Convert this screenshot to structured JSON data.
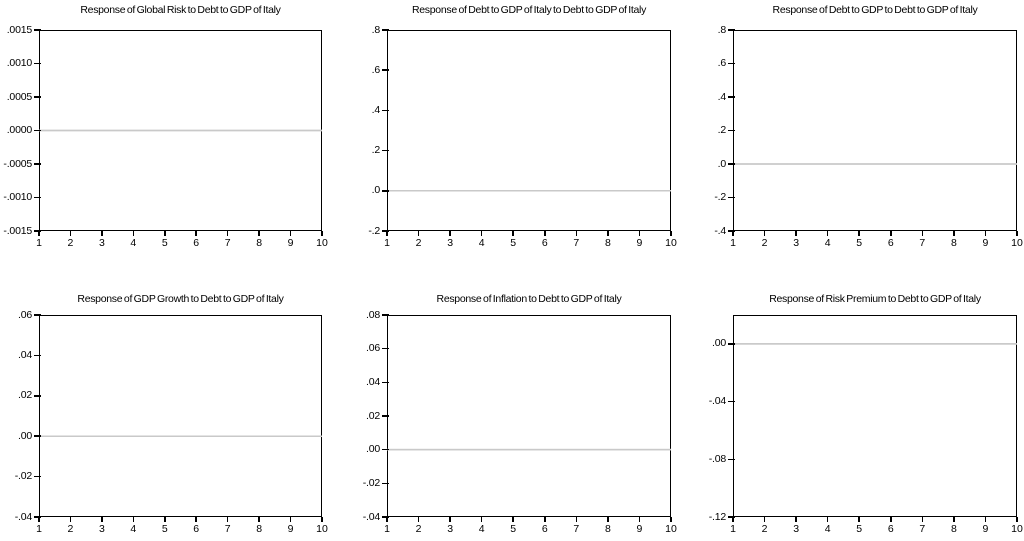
{
  "figure": {
    "background": "#ffffff"
  },
  "colors": {
    "axis": "#000000",
    "text": "#000000",
    "zero_line": "#c9c9c9",
    "response_line": "#c9c9c9"
  },
  "chart_data": [
    {
      "type": "line",
      "title": "Response of Global Risk to Debt to GDP of Italy",
      "x": [
        1,
        2,
        3,
        4,
        5,
        6,
        7,
        8,
        9,
        10
      ],
      "values": [
        0,
        0,
        0,
        0,
        0,
        0,
        0,
        0,
        0,
        0
      ],
      "xlim": [
        1,
        10
      ],
      "ylim": [
        -0.0015,
        0.0015
      ],
      "ytick_labels": [
        ".0015",
        ".0010",
        ".0005",
        ".0000",
        "-.0005",
        "-.0010",
        "-.0015"
      ],
      "ytick_values": [
        0.0015,
        0.001,
        0.0005,
        0,
        -0.0005,
        -0.001,
        -0.0015
      ],
      "xtick_labels": [
        "1",
        "2",
        "3",
        "4",
        "5",
        "6",
        "7",
        "8",
        "9",
        "10"
      ],
      "grid": false,
      "zero_line": true
    },
    {
      "type": "line",
      "title": "Response of Debt to GDP of Italy to Debt to GDP of Italy",
      "x": [
        1,
        2,
        3,
        4,
        5,
        6,
        7,
        8,
        9,
        10
      ],
      "values": [
        0,
        0,
        0,
        0,
        0,
        0,
        0,
        0,
        0,
        0
      ],
      "xlim": [
        1,
        10
      ],
      "ylim": [
        -0.2,
        0.8
      ],
      "ytick_labels": [
        ".8",
        ".6",
        ".4",
        ".2",
        ".0",
        "-.2"
      ],
      "ytick_values": [
        0.8,
        0.6,
        0.4,
        0.2,
        0,
        -0.2
      ],
      "xtick_labels": [
        "1",
        "2",
        "3",
        "4",
        "5",
        "6",
        "7",
        "8",
        "9",
        "10"
      ],
      "grid": false,
      "zero_line": true
    },
    {
      "type": "line",
      "title": "Response of Debt to GDP to Debt to GDP of Italy",
      "x": [
        1,
        2,
        3,
        4,
        5,
        6,
        7,
        8,
        9,
        10
      ],
      "values": [
        0,
        0,
        0,
        0,
        0,
        0,
        0,
        0,
        0,
        0
      ],
      "xlim": [
        1,
        10
      ],
      "ylim": [
        -0.4,
        0.8
      ],
      "ytick_labels": [
        ".8",
        ".6",
        ".4",
        ".2",
        ".0",
        "-.2",
        "-.4"
      ],
      "ytick_values": [
        0.8,
        0.6,
        0.4,
        0.2,
        0,
        -0.2,
        -0.4
      ],
      "xtick_labels": [
        "1",
        "2",
        "3",
        "4",
        "5",
        "6",
        "7",
        "8",
        "9",
        "10"
      ],
      "grid": false,
      "zero_line": true
    },
    {
      "type": "line",
      "title": "Response of GDP Growth to Debt to GDP of Italy",
      "x": [
        1,
        2,
        3,
        4,
        5,
        6,
        7,
        8,
        9,
        10
      ],
      "values": [
        0,
        0,
        0,
        0,
        0,
        0,
        0,
        0,
        0,
        0
      ],
      "xlim": [
        1,
        10
      ],
      "ylim": [
        -0.04,
        0.06
      ],
      "ytick_labels": [
        ".06",
        ".04",
        ".02",
        ".00",
        "-.02",
        "-.04"
      ],
      "ytick_values": [
        0.06,
        0.04,
        0.02,
        0,
        -0.02,
        -0.04
      ],
      "xtick_labels": [
        "1",
        "2",
        "3",
        "4",
        "5",
        "6",
        "7",
        "8",
        "9",
        "10"
      ],
      "grid": false,
      "zero_line": true
    },
    {
      "type": "line",
      "title": "Response of Inflation to Debt to GDP of Italy",
      "x": [
        1,
        2,
        3,
        4,
        5,
        6,
        7,
        8,
        9,
        10
      ],
      "values": [
        0,
        0,
        0,
        0,
        0,
        0,
        0,
        0,
        0,
        0
      ],
      "xlim": [
        1,
        10
      ],
      "ylim": [
        -0.04,
        0.08
      ],
      "ytick_labels": [
        ".08",
        ".06",
        ".04",
        ".02",
        ".00",
        "-.02",
        "-.04"
      ],
      "ytick_values": [
        0.08,
        0.06,
        0.04,
        0.02,
        0,
        -0.02,
        -0.04
      ],
      "xtick_labels": [
        "1",
        "2",
        "3",
        "4",
        "5",
        "6",
        "7",
        "8",
        "9",
        "10"
      ],
      "grid": false,
      "zero_line": true
    },
    {
      "type": "line",
      "title": "Response of Risk Premium to Debt to GDP of Italy",
      "x": [
        1,
        2,
        3,
        4,
        5,
        6,
        7,
        8,
        9,
        10
      ],
      "values": [
        0,
        0,
        0,
        0,
        0,
        0,
        0,
        0,
        0,
        0
      ],
      "xlim": [
        1,
        10
      ],
      "ylim": [
        -0.12,
        0.02
      ],
      "ytick_labels": [
        ".00",
        "-.04",
        "-.08",
        "-.12"
      ],
      "ytick_values": [
        0,
        -0.04,
        -0.08,
        -0.12
      ],
      "xtick_labels": [
        "1",
        "2",
        "3",
        "4",
        "5",
        "6",
        "7",
        "8",
        "9",
        "10"
      ],
      "grid": false,
      "zero_line": true
    }
  ]
}
